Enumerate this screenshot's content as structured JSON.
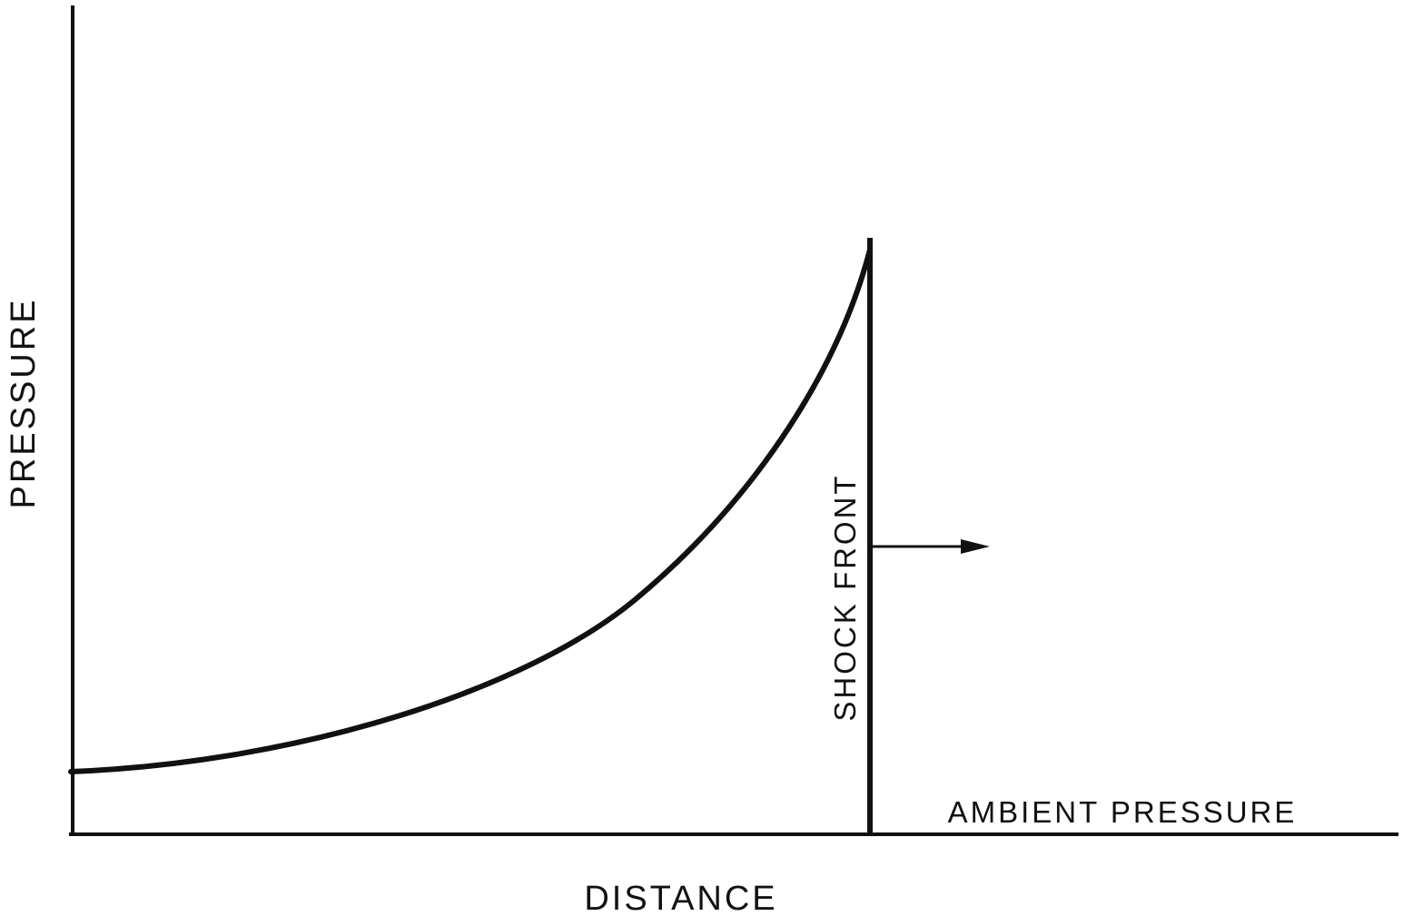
{
  "diagram": {
    "labels": {
      "y_axis": "PRESSURE",
      "x_axis": "DISTANCE",
      "shock_front": "SHOCK FRONT",
      "ambient": "AMBIENT PRESSURE"
    },
    "colors": {
      "ink": "#111111",
      "background": "#ffffff"
    }
  }
}
